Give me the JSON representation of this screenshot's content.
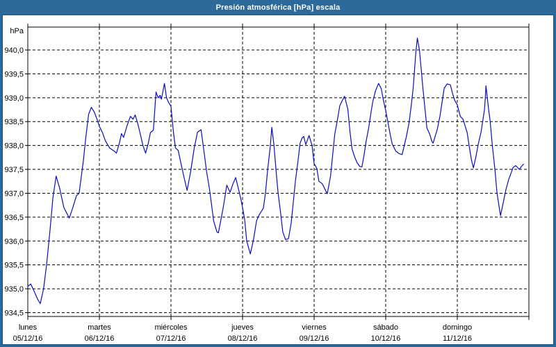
{
  "window": {
    "title": "Presión atmosférica [hPa] escala"
  },
  "colors": {
    "titlebar": "#2b6a9b",
    "window_border": "#2b6a9b",
    "inner_frame_line": "#1c4d74",
    "plot_line": "#0b0bc0",
    "grid": "#000000",
    "axis_text": "#000000",
    "plot_background": "#ffffff"
  },
  "chart_data": {
    "type": "line",
    "title": "Presión atmosférica [hPa] escala",
    "ylabel": "hPa",
    "y_unit_label": "hPa",
    "grid": "dashed",
    "legend": "none",
    "ylim": [
      934.42,
      940.48
    ],
    "yticks": [
      934.5,
      935.0,
      935.5,
      936.0,
      936.5,
      937.0,
      937.5,
      938.0,
      938.5,
      939.0,
      939.5,
      940.0
    ],
    "ytick_labels": [
      "934,5",
      "935,0",
      "935,5",
      "936,0",
      "936,5",
      "937,0",
      "937,5",
      "938,0",
      "938,5",
      "939,0",
      "939,5",
      "940,0"
    ],
    "x_total_hours": 168,
    "x_axis": {
      "days": [
        {
          "label": "lunes",
          "date": "05/12/16"
        },
        {
          "label": "martes",
          "date": "06/12/16"
        },
        {
          "label": "miércoles",
          "date": "07/12/16"
        },
        {
          "label": "jueves",
          "date": "08/12/16"
        },
        {
          "label": "viernes",
          "date": "09/12/16"
        },
        {
          "label": "sábado",
          "date": "10/12/16"
        },
        {
          "label": "domingo",
          "date": "11/12/16"
        }
      ]
    },
    "series": [
      {
        "color": "#0b0bc0",
        "points": [
          [
            0,
            935.05
          ],
          [
            1,
            935.1
          ],
          [
            2.1,
            934.95
          ],
          [
            3.3,
            934.78
          ],
          [
            4.2,
            934.69
          ],
          [
            5.3,
            935.0
          ],
          [
            6.3,
            935.5
          ],
          [
            7.4,
            936.2
          ],
          [
            8.4,
            936.9
          ],
          [
            9.5,
            937.36
          ],
          [
            10.7,
            937.1
          ],
          [
            12.1,
            936.7
          ],
          [
            13.9,
            936.48
          ],
          [
            15.1,
            936.7
          ],
          [
            16.3,
            936.95
          ],
          [
            17.2,
            937.0
          ],
          [
            18.6,
            937.66
          ],
          [
            19.5,
            938.2
          ],
          [
            20.4,
            938.65
          ],
          [
            21.3,
            938.8
          ],
          [
            22.3,
            938.7
          ],
          [
            23.2,
            938.55
          ],
          [
            24,
            938.4
          ],
          [
            25.1,
            938.26
          ],
          [
            26,
            938.1
          ],
          [
            27.4,
            937.95
          ],
          [
            29,
            937.88
          ],
          [
            29.7,
            937.84
          ],
          [
            30.7,
            938.05
          ],
          [
            31.4,
            938.25
          ],
          [
            32.1,
            938.17
          ],
          [
            33.2,
            938.4
          ],
          [
            34.4,
            938.61
          ],
          [
            35.3,
            938.55
          ],
          [
            36,
            938.64
          ],
          [
            36.9,
            938.45
          ],
          [
            37.6,
            938.27
          ],
          [
            38.6,
            938.0
          ],
          [
            39.5,
            937.84
          ],
          [
            40.4,
            938.05
          ],
          [
            41.1,
            938.27
          ],
          [
            42.1,
            938.32
          ],
          [
            43,
            939.12
          ],
          [
            43.7,
            939.0
          ],
          [
            44.4,
            939.05
          ],
          [
            44.8,
            938.97
          ],
          [
            45.8,
            939.3
          ],
          [
            46.5,
            939.0
          ],
          [
            47.2,
            938.9
          ],
          [
            48,
            938.82
          ],
          [
            48.8,
            938.3
          ],
          [
            49.5,
            937.95
          ],
          [
            50.4,
            937.9
          ],
          [
            51.6,
            937.55
          ],
          [
            52.5,
            937.3
          ],
          [
            53.4,
            937.06
          ],
          [
            54.6,
            937.45
          ],
          [
            55.8,
            937.95
          ],
          [
            56.9,
            938.28
          ],
          [
            58.1,
            938.33
          ],
          [
            59.2,
            937.81
          ],
          [
            59.9,
            937.47
          ],
          [
            60.9,
            937.09
          ],
          [
            61.6,
            936.76
          ],
          [
            62.3,
            936.42
          ],
          [
            63.4,
            936.19
          ],
          [
            63.9,
            936.17
          ],
          [
            65,
            936.53
          ],
          [
            65.7,
            936.77
          ],
          [
            66.7,
            937.17
          ],
          [
            67.8,
            937.02
          ],
          [
            68.8,
            937.2
          ],
          [
            69.7,
            937.33
          ],
          [
            70.9,
            937.02
          ],
          [
            71.6,
            936.83
          ],
          [
            72,
            936.7
          ],
          [
            72.7,
            936.45
          ],
          [
            73.4,
            936.0
          ],
          [
            74.6,
            935.73
          ],
          [
            75.7,
            936.04
          ],
          [
            76.7,
            936.43
          ],
          [
            77.6,
            936.55
          ],
          [
            79,
            936.69
          ],
          [
            79.7,
            937.01
          ],
          [
            80.4,
            937.49
          ],
          [
            81.3,
            937.98
          ],
          [
            81.8,
            938.38
          ],
          [
            82.5,
            938.02
          ],
          [
            83.2,
            937.49
          ],
          [
            83.9,
            937.01
          ],
          [
            84.8,
            936.57
          ],
          [
            85.5,
            936.19
          ],
          [
            86.4,
            936.03
          ],
          [
            87.4,
            936.05
          ],
          [
            88.3,
            936.38
          ],
          [
            89,
            936.81
          ],
          [
            89.7,
            937.25
          ],
          [
            90.6,
            937.68
          ],
          [
            91.3,
            938.05
          ],
          [
            92,
            938.16
          ],
          [
            92.5,
            938.19
          ],
          [
            93.2,
            938.02
          ],
          [
            94.3,
            938.21
          ],
          [
            95.3,
            938.0
          ],
          [
            96,
            937.62
          ],
          [
            96.9,
            937.52
          ],
          [
            97.6,
            937.25
          ],
          [
            98.7,
            937.2
          ],
          [
            100.4,
            936.99
          ],
          [
            101.5,
            937.36
          ],
          [
            102.2,
            937.79
          ],
          [
            102.9,
            938.23
          ],
          [
            103.9,
            938.57
          ],
          [
            104.6,
            938.83
          ],
          [
            105.5,
            938.95
          ],
          [
            106.2,
            939.03
          ],
          [
            107.3,
            938.76
          ],
          [
            108,
            938.3
          ],
          [
            108.7,
            937.93
          ],
          [
            109.7,
            937.74
          ],
          [
            110.4,
            937.64
          ],
          [
            111.3,
            937.56
          ],
          [
            112,
            937.55
          ],
          [
            112.7,
            937.79
          ],
          [
            113.4,
            938.08
          ],
          [
            114.3,
            938.37
          ],
          [
            115,
            938.66
          ],
          [
            115.7,
            938.93
          ],
          [
            116.6,
            939.15
          ],
          [
            117.6,
            939.3
          ],
          [
            118.5,
            939.19
          ],
          [
            119.2,
            938.95
          ],
          [
            120,
            938.73
          ],
          [
            120.8,
            938.47
          ],
          [
            121.5,
            938.23
          ],
          [
            122.2,
            938.03
          ],
          [
            123.4,
            937.88
          ],
          [
            124.5,
            937.83
          ],
          [
            125.5,
            937.81
          ],
          [
            126.9,
            938.18
          ],
          [
            127.8,
            938.47
          ],
          [
            128.5,
            938.81
          ],
          [
            129.2,
            939.2
          ],
          [
            129.6,
            939.53
          ],
          [
            130.1,
            939.95
          ],
          [
            130.6,
            940.25
          ],
          [
            131.3,
            940.0
          ],
          [
            132,
            939.53
          ],
          [
            132.4,
            939.24
          ],
          [
            133.1,
            938.81
          ],
          [
            133.8,
            938.37
          ],
          [
            134.8,
            938.23
          ],
          [
            135.5,
            938.08
          ],
          [
            135.9,
            938.05
          ],
          [
            137.3,
            938.34
          ],
          [
            138.2,
            938.62
          ],
          [
            138.9,
            938.91
          ],
          [
            139.6,
            939.2
          ],
          [
            140.6,
            939.29
          ],
          [
            141.7,
            939.27
          ],
          [
            142.4,
            939.09
          ],
          [
            143.1,
            938.95
          ],
          [
            144,
            938.85
          ],
          [
            145,
            938.61
          ],
          [
            145.9,
            938.55
          ],
          [
            147.3,
            938.27
          ],
          [
            148,
            937.98
          ],
          [
            148.7,
            937.71
          ],
          [
            149.4,
            937.53
          ],
          [
            150.3,
            937.78
          ],
          [
            151,
            938.02
          ],
          [
            152,
            938.29
          ],
          [
            153.1,
            938.75
          ],
          [
            153.4,
            939.0
          ],
          [
            153.6,
            939.25
          ],
          [
            154.5,
            938.75
          ],
          [
            155,
            938.52
          ],
          [
            155.7,
            938.03
          ],
          [
            156.6,
            937.5
          ],
          [
            157.3,
            937.01
          ],
          [
            158,
            936.72
          ],
          [
            158.5,
            936.53
          ],
          [
            159.6,
            936.86
          ],
          [
            160.3,
            937.08
          ],
          [
            161.3,
            937.3
          ],
          [
            162,
            937.42
          ],
          [
            162.7,
            937.54
          ],
          [
            163.6,
            937.58
          ],
          [
            164.8,
            937.5
          ],
          [
            165.5,
            937.56
          ],
          [
            166.2,
            937.61
          ]
        ]
      }
    ]
  }
}
